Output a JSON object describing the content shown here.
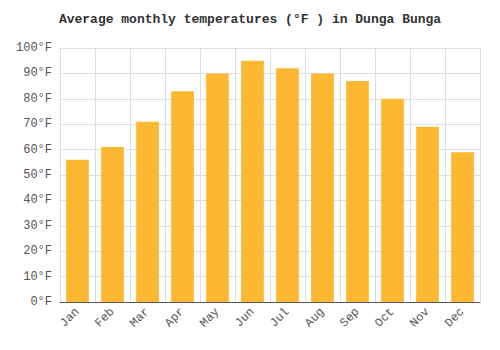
{
  "chart_data": {
    "type": "bar",
    "title": "Average monthly temperatures (°F ) in Dunga Bunga",
    "categories": [
      "Jan",
      "Feb",
      "Mar",
      "Apr",
      "May",
      "Jun",
      "Jul",
      "Aug",
      "Sep",
      "Oct",
      "Nov",
      "Dec"
    ],
    "values": [
      56,
      61,
      71,
      83,
      90,
      95,
      92,
      90,
      87,
      80,
      69,
      59
    ],
    "color": "#FDB833",
    "ylim": [
      0,
      100
    ],
    "yticks": [
      {
        "value": 0,
        "label": "0°F"
      },
      {
        "value": 10,
        "label": "10°F"
      },
      {
        "value": 20,
        "label": "20°F"
      },
      {
        "value": 30,
        "label": "30°F"
      },
      {
        "value": 40,
        "label": "40°F"
      },
      {
        "value": 50,
        "label": "50°F"
      },
      {
        "value": 60,
        "label": "60°F"
      },
      {
        "value": 70,
        "label": "70°F"
      },
      {
        "value": 80,
        "label": "80°F"
      },
      {
        "value": 90,
        "label": "90°F"
      },
      {
        "value": 100,
        "label": "100°F"
      }
    ],
    "grid": true
  }
}
